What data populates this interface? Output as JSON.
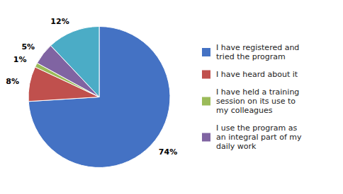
{
  "chart_data": {
    "type": "pie",
    "categories": [
      "I have registered and\ntried the program",
      "I have heard about it",
      "I have held a training\nsession on its use to\nmy colleagues",
      "I use the program as\nan integral part of my\ndaily work",
      null
    ],
    "values": [
      74,
      8,
      1,
      5,
      12
    ],
    "value_labels": [
      "74%",
      "8%",
      "1%",
      "5%",
      "12%"
    ],
    "colors": [
      "#4472C4",
      "#C0504D",
      "#9BBB59",
      "#8064A2",
      "#4BACC6"
    ],
    "data_labels": true,
    "legend": "right"
  }
}
